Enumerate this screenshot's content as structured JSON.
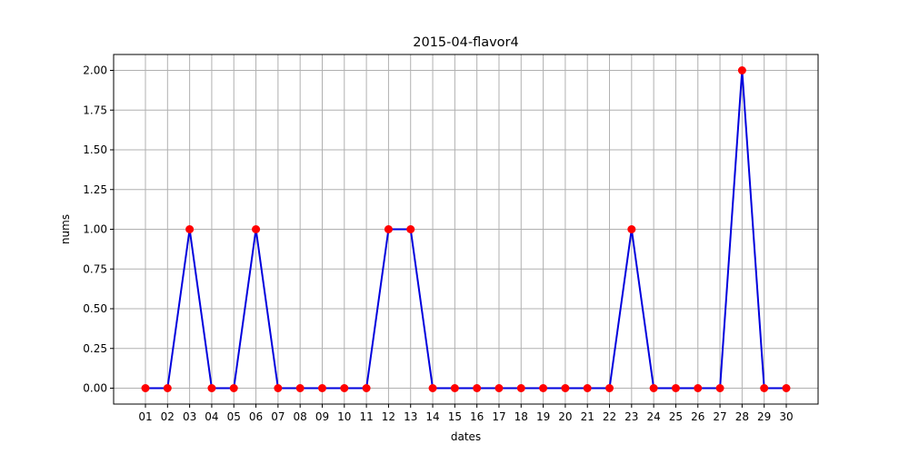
{
  "chart_data": {
    "type": "line",
    "title": "2015-04-flavor4",
    "xlabel": "dates",
    "ylabel": "nums",
    "categories": [
      "01",
      "02",
      "03",
      "04",
      "05",
      "06",
      "07",
      "08",
      "09",
      "10",
      "11",
      "12",
      "13",
      "14",
      "15",
      "16",
      "17",
      "18",
      "19",
      "20",
      "21",
      "22",
      "23",
      "24",
      "25",
      "26",
      "27",
      "28",
      "29",
      "30"
    ],
    "series": [
      {
        "values": [
          0,
          0,
          1,
          0,
          0,
          1,
          0,
          0,
          0,
          0,
          0,
          1,
          1,
          0,
          0,
          0,
          0,
          0,
          0,
          0,
          0,
          0,
          1,
          0,
          0,
          0,
          0,
          2,
          0,
          0
        ],
        "line_color": "#0000dd",
        "marker_color": "#ff0000"
      }
    ],
    "ylim": [
      -0.1,
      2.1
    ],
    "yticks": [
      "0.00",
      "0.25",
      "0.50",
      "0.75",
      "1.00",
      "1.25",
      "1.50",
      "1.75",
      "2.00"
    ],
    "ytick_values": [
      0,
      0.25,
      0.5,
      0.75,
      1.0,
      1.25,
      1.5,
      1.75,
      2.0
    ],
    "grid": true
  }
}
